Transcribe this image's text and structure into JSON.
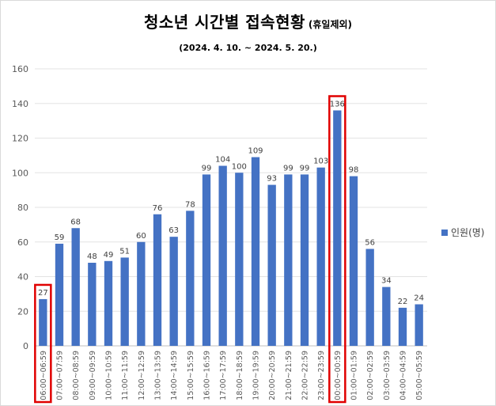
{
  "chart_data": {
    "type": "bar",
    "title": "청소년 시간별 접속현황",
    "title_note": "(휴일제외)",
    "subtitle": "(2024. 4. 10. ~ 2024. 5. 20.)",
    "xlabel": "",
    "ylabel": "",
    "ylim": [
      0,
      160
    ],
    "yticks": [
      0,
      20,
      40,
      60,
      80,
      100,
      120,
      140,
      160
    ],
    "grid": true,
    "legend": "right",
    "categories": [
      "06:00~06:59",
      "07:00~07:59",
      "08:00~08:59",
      "09:00~09:59",
      "10:00~10:59",
      "11:00~11:59",
      "12:00~12:59",
      "13:00~13:59",
      "14:00~14:59",
      "15:00~15:59",
      "16:00~16:59",
      "17:00~17:59",
      "18:00~18:59",
      "19:00~19:59",
      "20:00~20:59",
      "21:00~21:59",
      "22:00~22:59",
      "23:00~23:59",
      "00:00~00:59",
      "01:00~01:59",
      "02:00~02:59",
      "03:00~03:59",
      "04:00~04:59",
      "05:00~05:59"
    ],
    "series": [
      {
        "name": "인원(명)",
        "color": "#4472c4",
        "values": [
          27,
          59,
          68,
          48,
          49,
          51,
          60,
          76,
          63,
          78,
          99,
          104,
          100,
          109,
          93,
          99,
          99,
          103,
          136,
          98,
          56,
          34,
          22,
          24
        ]
      }
    ],
    "highlighted_categories": [
      "06:00~06:59",
      "00:00~00:59"
    ],
    "highlight_color": "#e00000"
  }
}
